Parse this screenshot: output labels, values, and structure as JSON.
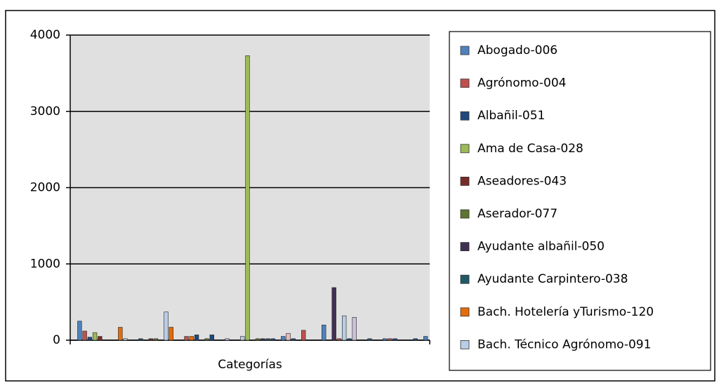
{
  "chart_data": {
    "type": "bar",
    "x_label": "Categorías",
    "categories": [
      "Categorías"
    ],
    "ylim": [
      0,
      4000
    ],
    "yticks": [
      0,
      1000,
      2000,
      3000,
      4000
    ],
    "grid": true,
    "series": [
      {
        "name": "Abogado-006",
        "color": "#4F81BD",
        "values": [
          250
        ]
      },
      {
        "name": "Agrónomo-004",
        "color": "#C0504D",
        "values": [
          120
        ]
      },
      {
        "name": "Albañil-051",
        "color": "#1F497D",
        "values": [
          40
        ]
      },
      {
        "name": "Ama de Casa-028",
        "color": "#9BBB59",
        "values": [
          100
        ]
      },
      {
        "name": "Aseadores-043",
        "color": "#772C2A",
        "values": [
          50
        ]
      },
      {
        "name": "Aserador-077",
        "color": "#5F7530",
        "values": [
          0
        ]
      },
      {
        "name": "Ayudante albañil-050",
        "color": "#403152",
        "values": [
          0
        ]
      },
      {
        "name": "Ayudante Carpintero-038",
        "color": "#215968",
        "values": [
          0
        ]
      },
      {
        "name": "Bach. Hotelería yTurismo-120",
        "color": "#E46C0A",
        "values": [
          170
        ]
      },
      {
        "name": "Bach. Técnico Agrónomo-091",
        "color": "#B9CDE5",
        "values": [
          20
        ]
      },
      {
        "color": "#4F81BD",
        "values": [
          0
        ]
      },
      {
        "color": "#C0504D",
        "values": [
          0
        ]
      },
      {
        "color": "#1F497D",
        "values": [
          20
        ]
      },
      {
        "color": "#9BBB59",
        "values": [
          0
        ]
      },
      {
        "color": "#772C2A",
        "values": [
          20
        ]
      },
      {
        "color": "#5F7530",
        "values": [
          20
        ]
      },
      {
        "color": "#403152",
        "values": [
          0
        ]
      },
      {
        "color": "#B9CDE5",
        "values": [
          370
        ]
      },
      {
        "color": "#E46C0A",
        "values": [
          170
        ]
      },
      {
        "color": "#B9CDE5",
        "values": [
          0
        ]
      },
      {
        "color": "#4F81BD",
        "values": [
          0
        ]
      },
      {
        "color": "#C0504D",
        "values": [
          50
        ]
      },
      {
        "color": "#E46C0A",
        "values": [
          50
        ]
      },
      {
        "color": "#1F497D",
        "values": [
          70
        ]
      },
      {
        "color": "#772C2A",
        "values": [
          0
        ]
      },
      {
        "color": "#5F7530",
        "values": [
          20
        ]
      },
      {
        "color": "#1F497D",
        "values": [
          70
        ]
      },
      {
        "color": "#215968",
        "values": [
          0
        ]
      },
      {
        "color": "#E46C0A",
        "values": [
          0
        ]
      },
      {
        "color": "#B9CDE5",
        "values": [
          20
        ]
      },
      {
        "color": "#4F81BD",
        "values": [
          0
        ]
      },
      {
        "color": "#C0504D",
        "values": [
          0
        ]
      },
      {
        "color": "#B9CDE5",
        "values": [
          50
        ]
      },
      {
        "color": "#9BBB59",
        "values": [
          3730
        ]
      },
      {
        "color": "#772C2A",
        "values": [
          0
        ]
      },
      {
        "color": "#5F7530",
        "values": [
          20
        ]
      },
      {
        "color": "#403152",
        "values": [
          20
        ]
      },
      {
        "color": "#215968",
        "values": [
          20
        ]
      },
      {
        "color": "#1F497D",
        "values": [
          20
        ]
      },
      {
        "color": "#B9CDE5",
        "values": [
          0
        ]
      },
      {
        "color": "#4F81BD",
        "values": [
          50
        ]
      },
      {
        "color": "#E6B9B8",
        "values": [
          90
        ]
      },
      {
        "color": "#1F497D",
        "values": [
          20
        ]
      },
      {
        "color": "#9BBB59",
        "values": [
          0
        ]
      },
      {
        "color": "#C0504D",
        "values": [
          130
        ]
      },
      {
        "color": "#5F7530",
        "values": [
          0
        ]
      },
      {
        "color": "#403152",
        "values": [
          0
        ]
      },
      {
        "color": "#215968",
        "values": [
          0
        ]
      },
      {
        "color": "#4F81BD",
        "values": [
          200
        ]
      },
      {
        "color": "#B9CDE5",
        "values": [
          0
        ]
      },
      {
        "color": "#403152",
        "values": [
          690
        ]
      },
      {
        "color": "#C0504D",
        "values": [
          20
        ]
      },
      {
        "color": "#B9CDE5",
        "values": [
          320
        ]
      },
      {
        "color": "#1F497D",
        "values": [
          20
        ]
      },
      {
        "color": "#CCC1DA",
        "values": [
          300
        ]
      },
      {
        "color": "#5F7530",
        "values": [
          0
        ]
      },
      {
        "color": "#403152",
        "values": [
          0
        ]
      },
      {
        "color": "#215968",
        "values": [
          20
        ]
      },
      {
        "color": "#E46C0A",
        "values": [
          0
        ]
      },
      {
        "color": "#B9CDE5",
        "values": [
          0
        ]
      },
      {
        "color": "#4F81BD",
        "values": [
          20
        ]
      },
      {
        "color": "#C0504D",
        "values": [
          20
        ]
      },
      {
        "color": "#1F497D",
        "values": [
          20
        ]
      },
      {
        "color": "#9BBB59",
        "values": [
          0
        ]
      },
      {
        "color": "#772C2A",
        "values": [
          0
        ]
      },
      {
        "color": "#5F7530",
        "values": [
          0
        ]
      },
      {
        "color": "#1F497D",
        "values": [
          20
        ]
      },
      {
        "color": "#215968",
        "values": [
          0
        ]
      },
      {
        "color": "#4F81BD",
        "values": [
          50
        ]
      }
    ]
  }
}
